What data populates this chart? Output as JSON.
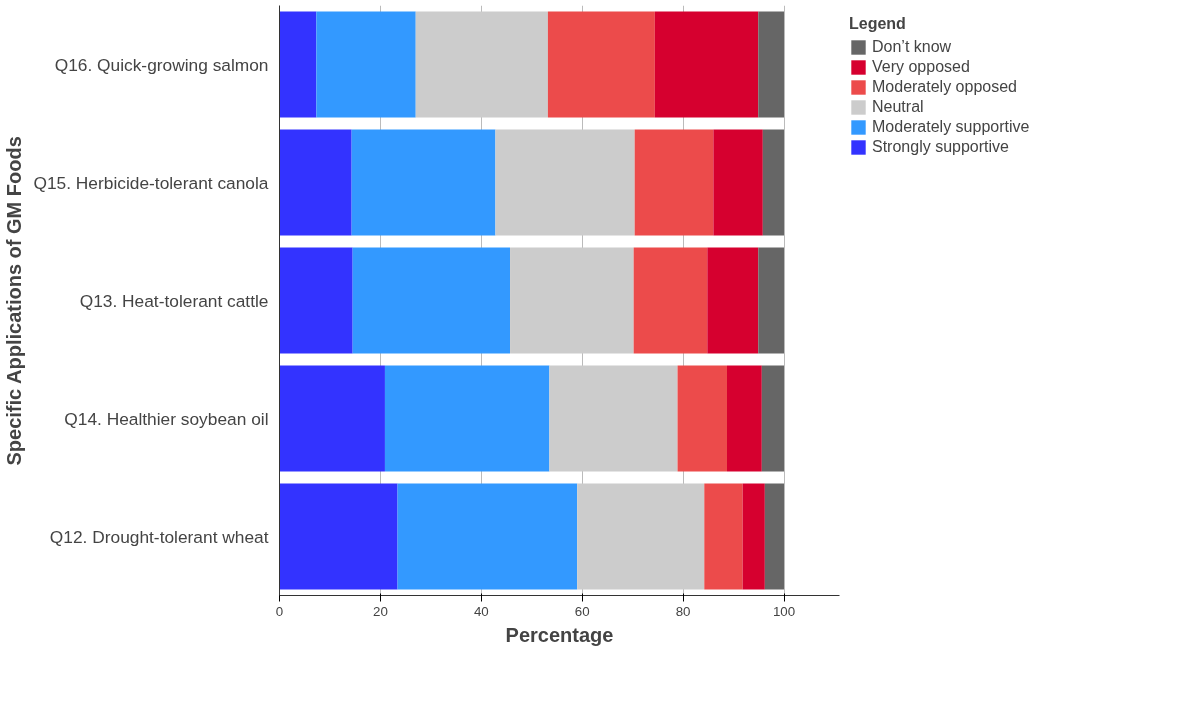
{
  "chart_data": {
    "type": "bar",
    "orientation": "horizontal",
    "stacked": true,
    "xlabel": "Percentage",
    "ylabel": "Specific Applications of GM Foods",
    "legend_title": "Legend",
    "legend": "top right",
    "grid": "x",
    "categories": [
      "Q16. Quick-growing salmon",
      "Q15. Herbicide-tolerant canola",
      "Q13. Heat-tolerant cattle",
      "Q14. Healthier soybean oil",
      "Q12. Drought-tolerant wheat"
    ],
    "xlim": [
      0,
      111
    ],
    "xticks": [
      0,
      20,
      40,
      60,
      80,
      100
    ],
    "series": [
      {
        "name": "Strongly supportive",
        "color": "#3333ff",
        "values": [
          7.3,
          14.3,
          14.5,
          20.9,
          23.4
        ]
      },
      {
        "name": "Moderately supportive",
        "color": "#3399ff",
        "values": [
          19.7,
          28.5,
          31.2,
          32.6,
          35.6
        ]
      },
      {
        "name": "Neutral",
        "color": "#cccccc",
        "values": [
          26.2,
          27.6,
          24.5,
          25.4,
          25.2
        ]
      },
      {
        "name": "Moderately opposed",
        "color": "#ec4b4b",
        "values": [
          21.2,
          15.6,
          14.6,
          9.8,
          7.6
        ]
      },
      {
        "name": "Very opposed",
        "color": "#d6002f",
        "values": [
          20.5,
          9.8,
          10.1,
          6.9,
          4.4
        ]
      },
      {
        "name": "Don’t know",
        "color": "#666666",
        "values": [
          5.1,
          4.2,
          5.1,
          4.4,
          3.8
        ]
      }
    ]
  }
}
